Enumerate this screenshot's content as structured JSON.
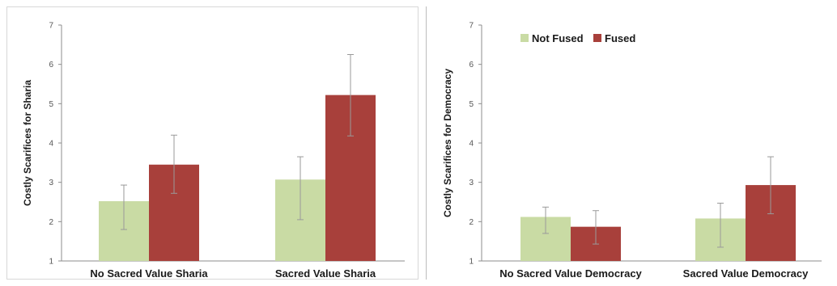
{
  "colors": {
    "not_fused": "#c9dba4",
    "fused": "#a8403b",
    "error": "#9a9a9a",
    "axis": "#8c8c8c"
  },
  "chart_data": [
    {
      "type": "bar",
      "ylabel": "Costly Scarifices for Sharia",
      "ylim": [
        1,
        7
      ],
      "yticks": [
        "1",
        "2",
        "3",
        "4",
        "5",
        "6",
        "7"
      ],
      "categories": [
        "No Sacred Value Sharia",
        "Sacred Value Sharia"
      ],
      "series": [
        {
          "name": "Not Fused",
          "values": [
            2.52,
            3.07
          ],
          "err_low": [
            1.8,
            2.05
          ],
          "err_high": [
            2.93,
            3.65
          ]
        },
        {
          "name": "Fused",
          "values": [
            3.45,
            5.22
          ],
          "err_low": [
            2.72,
            4.18
          ],
          "err_high": [
            4.2,
            6.25
          ]
        }
      ],
      "legend": false,
      "grid": false
    },
    {
      "type": "bar",
      "ylabel": "Costly Scarifices for Democracy",
      "ylim": [
        1,
        7
      ],
      "yticks": [
        "1",
        "2",
        "3",
        "4",
        "5",
        "6",
        "7"
      ],
      "categories": [
        "No Sacred Value Democracy",
        "Sacred Value Democracy"
      ],
      "series": [
        {
          "name": "Not Fused",
          "values": [
            2.12,
            2.08
          ],
          "err_low": [
            1.7,
            1.35
          ],
          "err_high": [
            2.37,
            2.47
          ]
        },
        {
          "name": "Fused",
          "values": [
            1.87,
            2.93
          ],
          "err_low": [
            1.43,
            2.2
          ],
          "err_high": [
            2.28,
            3.65
          ]
        }
      ],
      "legend": true,
      "legend_position": "top-left",
      "grid": false
    }
  ]
}
